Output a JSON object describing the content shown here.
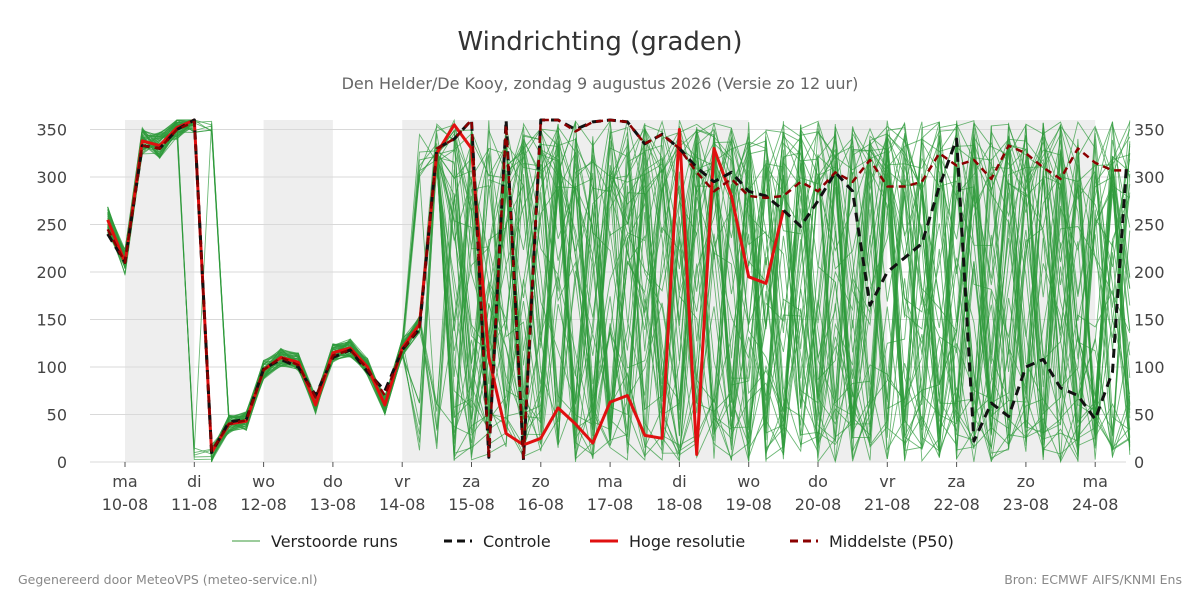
{
  "chart_data": {
    "type": "line",
    "title": "Windrichting (graden)",
    "subtitle": "Den Helder/De Kooy, zondag  9 augustus 2026 (Versie zo 12 uur)",
    "ylim": [
      0,
      360
    ],
    "yticks": [
      0,
      50,
      100,
      150,
      200,
      250,
      300,
      350
    ],
    "grid": true,
    "xlim": [
      -0.25,
      14.45
    ],
    "x_day_ticks": [
      {
        "day": "ma",
        "date": "10-08"
      },
      {
        "day": "di",
        "date": "11-08"
      },
      {
        "day": "wo",
        "date": "12-08"
      },
      {
        "day": "do",
        "date": "13-08"
      },
      {
        "day": "vr",
        "date": "14-08"
      },
      {
        "day": "za",
        "date": "15-08"
      },
      {
        "day": "zo",
        "date": "16-08"
      },
      {
        "day": "ma",
        "date": "17-08"
      },
      {
        "day": "di",
        "date": "18-08"
      },
      {
        "day": "wo",
        "date": "19-08"
      },
      {
        "day": "do",
        "date": "20-08"
      },
      {
        "day": "vr",
        "date": "21-08"
      },
      {
        "day": "za",
        "date": "22-08"
      },
      {
        "day": "zo",
        "date": "23-08"
      },
      {
        "day": "ma",
        "date": "24-08"
      }
    ],
    "shaded_periods": [
      [
        0,
        1
      ],
      [
        2,
        3
      ],
      [
        4,
        6
      ],
      [
        6,
        8
      ],
      [
        8,
        9
      ],
      [
        10,
        11
      ],
      [
        12,
        14
      ]
    ],
    "legend_placement": "bottom",
    "legend": [
      {
        "label": "Verstoorde runs",
        "color": "#3a9a3a",
        "style": "thin"
      },
      {
        "label": "Controle",
        "color": "#111111",
        "style": "dashed"
      },
      {
        "label": "Hoge resolutie",
        "color": "#e01010",
        "style": "solid"
      },
      {
        "label": "Middelste (P50)",
        "color": "#8b0000",
        "style": "dashed"
      }
    ],
    "series": [
      {
        "name": "Hoge resolutie",
        "color": "#e01010",
        "x": [
          -0.25,
          0,
          0.25,
          0.5,
          0.75,
          1,
          1.25,
          1.5,
          1.75,
          2,
          2.25,
          2.5,
          2.75,
          3,
          3.25,
          3.5,
          3.75,
          4,
          4.25,
          4.5,
          4.75,
          5,
          5.25,
          5.5,
          5.75,
          6,
          6.25,
          6.5,
          6.75,
          7,
          7.25,
          7.5,
          7.75,
          8,
          8.25,
          8.5,
          8.75,
          9,
          9.25,
          9.5
        ],
        "y": [
          255,
          210,
          338,
          333,
          352,
          360,
          10,
          40,
          43,
          97,
          110,
          105,
          60,
          115,
          120,
          100,
          60,
          120,
          145,
          325,
          355,
          330,
          110,
          30,
          18,
          25,
          57,
          40,
          20,
          63,
          70,
          28,
          25,
          350,
          8,
          330,
          280,
          195,
          188,
          265
        ]
      },
      {
        "name": "Controle",
        "color": "#111111",
        "x": [
          -0.25,
          0,
          0.25,
          0.5,
          0.75,
          1,
          1.25,
          1.5,
          1.75,
          2,
          2.25,
          2.5,
          2.75,
          3,
          3.25,
          3.5,
          3.75,
          4,
          4.25,
          4.5,
          4.75,
          5,
          5.25,
          5.5,
          5.75,
          6,
          6.25,
          6.5,
          6.75,
          7,
          7.25,
          7.5,
          7.75,
          8,
          8.25,
          8.5,
          8.75,
          9,
          9.25,
          9.5,
          9.75,
          10,
          10.25,
          10.5,
          10.75,
          11,
          11.25,
          11.5,
          11.75,
          12,
          12.25,
          12.5,
          12.75,
          13,
          13.25,
          13.5,
          13.75,
          14,
          14.25,
          14.45
        ],
        "y": [
          240,
          210,
          333,
          330,
          350,
          360,
          10,
          42,
          45,
          98,
          108,
          100,
          70,
          110,
          118,
          95,
          75,
          118,
          140,
          330,
          340,
          360,
          5,
          360,
          2,
          360,
          360,
          350,
          358,
          360,
          358,
          335,
          345,
          330,
          310,
          295,
          305,
          285,
          280,
          265,
          248,
          275,
          305,
          285,
          165,
          200,
          215,
          230,
          290,
          340,
          22,
          62,
          48,
          100,
          108,
          78,
          70,
          45,
          95,
          310
        ]
      },
      {
        "name": "Middelste (P50)",
        "color": "#8b0000",
        "x": [
          -0.25,
          0,
          0.25,
          0.5,
          0.75,
          1,
          1.25,
          1.5,
          1.75,
          2,
          2.25,
          2.5,
          2.75,
          3,
          3.25,
          3.5,
          3.75,
          4,
          4.25,
          4.5,
          4.75,
          5,
          5.25,
          5.5,
          5.75,
          6,
          6.25,
          6.5,
          6.75,
          7,
          7.25,
          7.5,
          7.75,
          8,
          8.25,
          8.5,
          8.75,
          9,
          9.25,
          9.5,
          9.75,
          10,
          10.25,
          10.5,
          10.75,
          11,
          11.25,
          11.5,
          11.75,
          12,
          12.25,
          12.5,
          12.75,
          13,
          13.25,
          13.5,
          13.75,
          14,
          14.25,
          14.45
        ],
        "y": [
          245,
          210,
          333,
          330,
          350,
          358,
          12,
          40,
          44,
          97,
          110,
          102,
          68,
          112,
          118,
          98,
          70,
          118,
          142,
          330,
          340,
          360,
          5,
          355,
          3,
          360,
          360,
          348,
          358,
          360,
          358,
          335,
          345,
          330,
          305,
          285,
          298,
          280,
          278,
          280,
          295,
          285,
          305,
          295,
          318,
          290,
          290,
          295,
          325,
          312,
          318,
          298,
          333,
          325,
          310,
          298,
          330,
          315,
          307,
          307
        ]
      }
    ]
  },
  "footer": {
    "left": "Gegenereerd door MeteoVPS (meteo-service.nl)",
    "right": "Bron: ECMWF AIFS/KNMI Ens"
  }
}
